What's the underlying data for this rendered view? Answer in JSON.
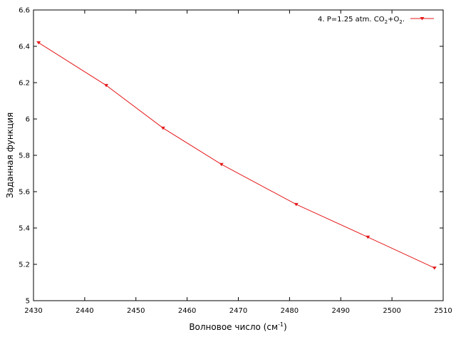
{
  "chart_data": {
    "type": "line",
    "xlabel": "Волновое число (см",
    "xlabel_sup": "-1",
    "xlabel_end": ")",
    "ylabel": "Заданная функция",
    "xlim": [
      2430,
      2510
    ],
    "ylim": [
      5,
      6.6
    ],
    "xticks": [
      "2430",
      "2440",
      "2450",
      "2460",
      "2470",
      "2480",
      "2490",
      "2500",
      "2510"
    ],
    "yticks": [
      "5",
      "5.2",
      "5.4",
      "5.6",
      "5.8",
      "6",
      "6.2",
      "6.4",
      "6.6"
    ],
    "grid": false,
    "legend_position": "top-right",
    "series": [
      {
        "legend": {
          "prefix": "4. P=1.25 atm. CO",
          "sub1": "2",
          "middle": "+O",
          "sub2": "2",
          "suffix": "."
        },
        "color": "#e41a1c",
        "marker": "triangle-down",
        "points": [
          {
            "x": 2431,
            "y": 6.42
          },
          {
            "x": 2444.2,
            "y": 6.185
          },
          {
            "x": 2455.3,
            "y": 5.95
          },
          {
            "x": 2466.7,
            "y": 5.75
          },
          {
            "x": 2481.3,
            "y": 5.53
          },
          {
            "x": 2495.3,
            "y": 5.35
          },
          {
            "x": 2508.3,
            "y": 5.18
          }
        ]
      }
    ]
  }
}
